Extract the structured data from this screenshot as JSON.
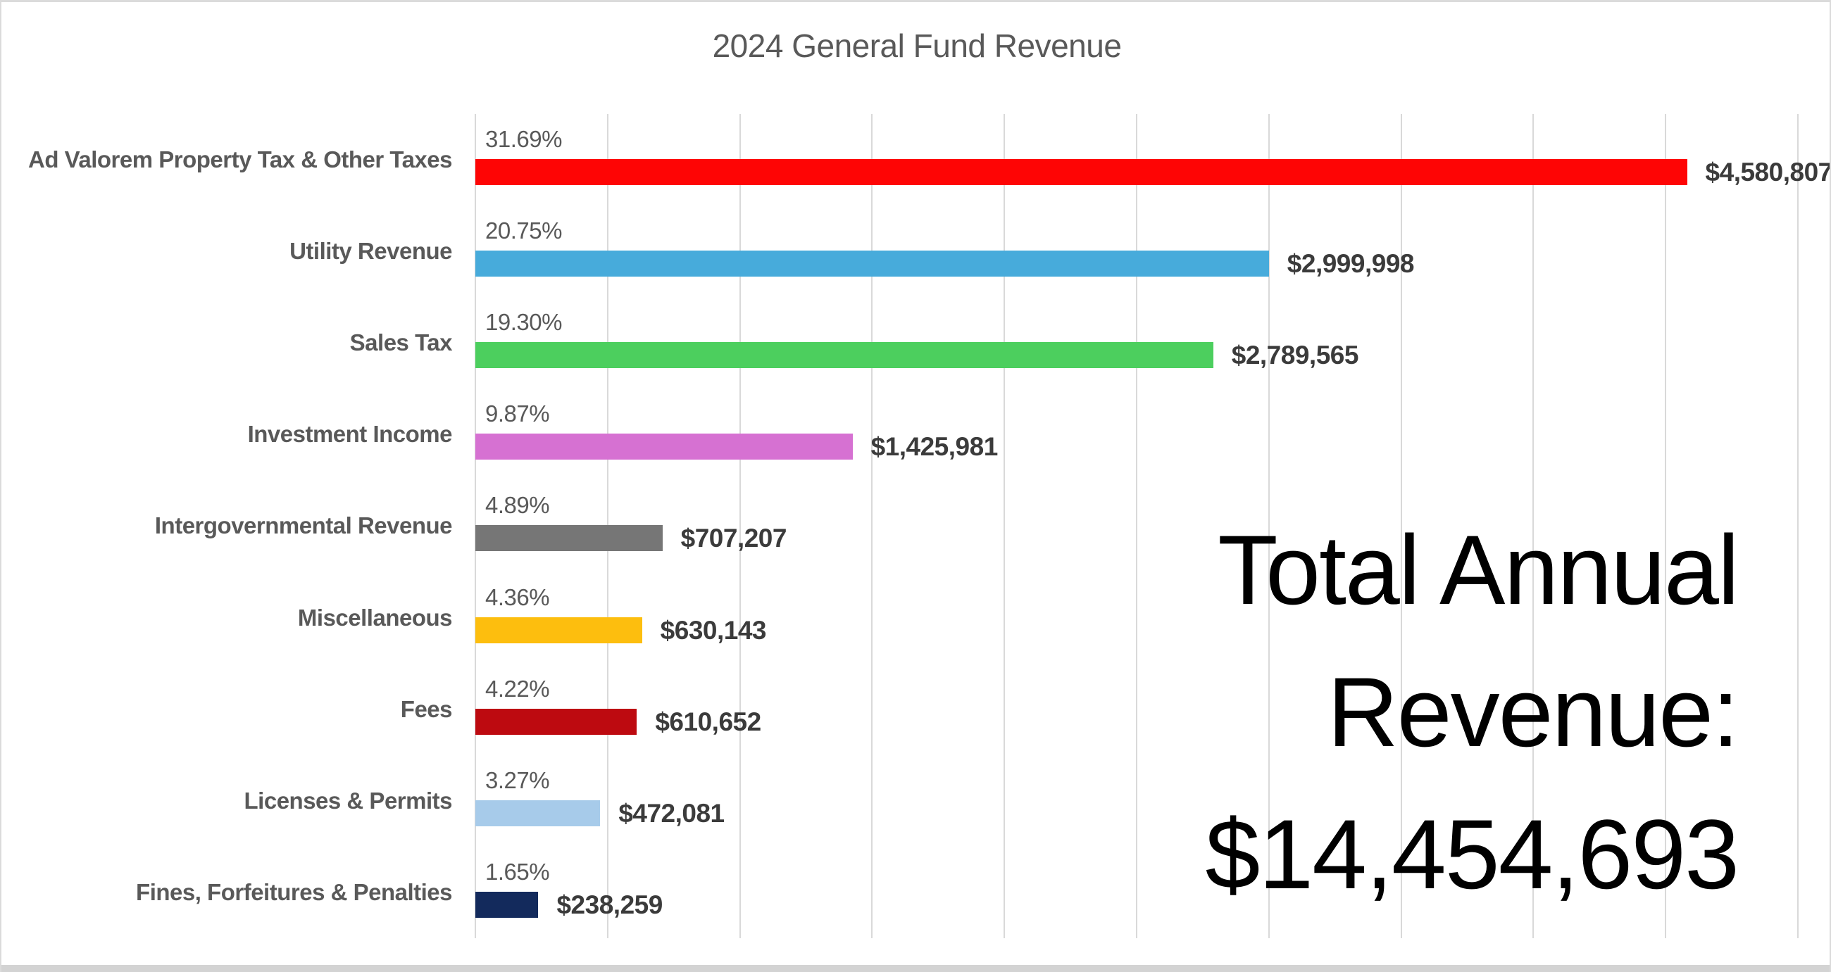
{
  "title": "2024 General Fund Revenue",
  "chart_data": {
    "type": "bar",
    "orientation": "horizontal",
    "title": "2024 General Fund Revenue",
    "categories": [
      "Ad Valorem Property Tax & Other Taxes",
      "Utility Revenue",
      "Sales Tax",
      "Investment Income",
      "Intergovernmental Revenue",
      "Miscellaneous",
      "Fees",
      "Licenses & Permits",
      "Fines, Forfeitures & Penalties"
    ],
    "values": [
      4580807,
      2999998,
      2789565,
      1425981,
      707207,
      630143,
      610652,
      472081,
      238259
    ],
    "percent_labels": [
      "31.69%",
      "20.75%",
      "19.30%",
      "9.87%",
      "4.89%",
      "4.36%",
      "4.22%",
      "3.27%",
      "1.65%"
    ],
    "value_labels": [
      "$4,580,807",
      "$2,999,998",
      "$2,789,565",
      "$1,425,981",
      "$707,207",
      "$630,143",
      "$610,652",
      "$472,081",
      "$238,259"
    ],
    "bar_colors": [
      "#fe0505",
      "#47abdb",
      "#4ccf5e",
      "#d671d2",
      "#767676",
      "#fdbe0e",
      "#bd0a10",
      "#a7cbea",
      "#132a5c"
    ],
    "xlim": [
      0,
      5000000
    ],
    "gridline_step": 500000,
    "grid": true,
    "legend": false
  },
  "annotation": {
    "line1": "Total Annual",
    "line2": "Revenue:",
    "line3": "$14,454,693"
  },
  "colors": {
    "title_text": "#595959",
    "category_text": "#595959",
    "percent_text": "#595959",
    "value_text": "#3b3b3b",
    "annotation_text": "#000000",
    "gridline": "#d9d9d9",
    "background": "#ffffff",
    "border": "#dbdbdb"
  }
}
